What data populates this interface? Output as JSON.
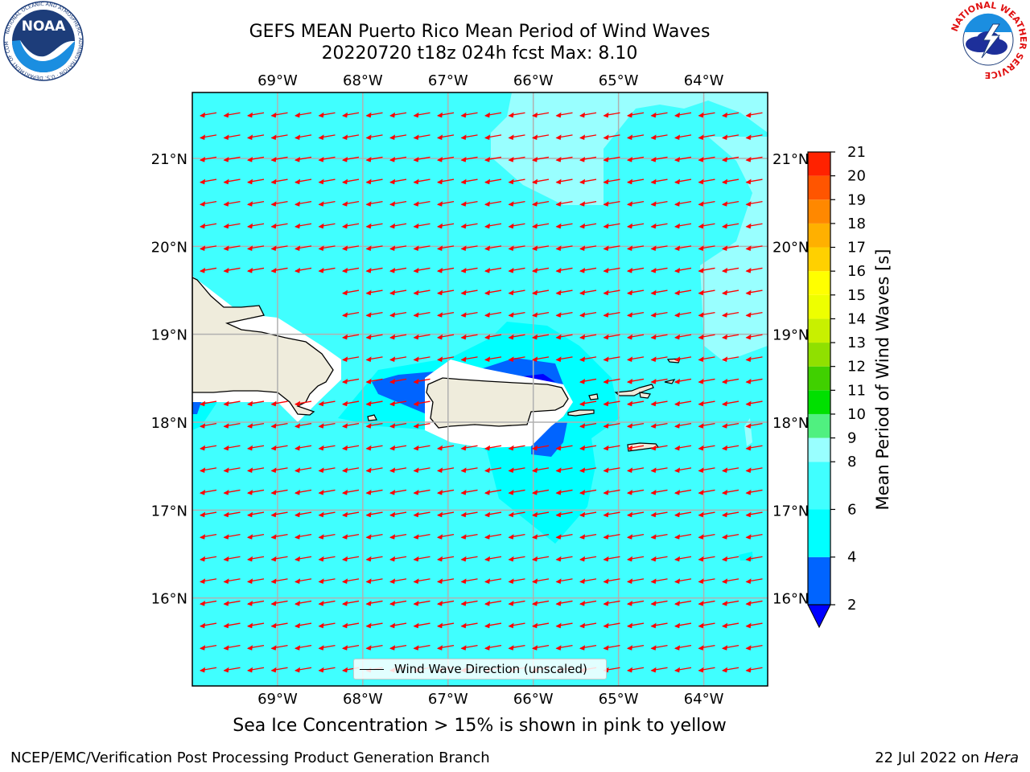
{
  "title": {
    "line1": "GEFS MEAN Puerto Rico Mean Period of Wind Waves",
    "line2": "20220720 t18z 024h fcst   Max: 8.10"
  },
  "map": {
    "lon_min": -70.0,
    "lon_max": -63.25,
    "lat_min": 15.0,
    "lat_max": 21.75,
    "lon_ticks": [
      {
        "value": -69,
        "label": "69°W"
      },
      {
        "value": -68,
        "label": "68°W"
      },
      {
        "value": -67,
        "label": "67°W"
      },
      {
        "value": -66,
        "label": "66°W"
      },
      {
        "value": -65,
        "label": "65°W"
      },
      {
        "value": -64,
        "label": "64°W"
      }
    ],
    "lat_ticks": [
      {
        "value": 21,
        "label": "21°N"
      },
      {
        "value": 20,
        "label": "20°N"
      },
      {
        "value": 19,
        "label": "19°N"
      },
      {
        "value": 18,
        "label": "18°N"
      },
      {
        "value": 17,
        "label": "17°N"
      },
      {
        "value": 16,
        "label": "16°N"
      }
    ],
    "grid": true,
    "land_color": "#efecdc",
    "ocean_fill": "#40ffff",
    "arrow_color": "#ff0000",
    "arrow_direction": "from east (pointing west-southwest)"
  },
  "legend": {
    "label": "Wind Wave Direction (unscaled)",
    "placement": "lower-center"
  },
  "colorbar": {
    "label": "Mean Period of Wind Waves [s]",
    "min": 2,
    "max": 21,
    "tick_labels": [
      "2",
      "4",
      "6",
      "8",
      "9",
      "10",
      "11",
      "12",
      "13",
      "14",
      "15",
      "16",
      "17",
      "18",
      "19",
      "20",
      "21"
    ],
    "boundaries": [
      2,
      4,
      6,
      8,
      9,
      10,
      11,
      12,
      13,
      14,
      15,
      16,
      17,
      18,
      19,
      20,
      21
    ],
    "colors": [
      "#0064ff",
      "#00ffff",
      "#40ffff",
      "#99ffff",
      "#50f080",
      "#00e000",
      "#40d000",
      "#90e000",
      "#c8f000",
      "#eeff00",
      "#ffff00",
      "#ffd000",
      "#ffb000",
      "#ff8800",
      "#ff5500",
      "#ff2200"
    ],
    "under_color": "#0000ff"
  },
  "footnote": "Sea Ice Concentration > 15% is shown in pink to yellow",
  "credit_left": "NCEP/EMC/Verification Post Processing Product Generation Branch",
  "credit_right_prefix": "22 Jul 2022 on ",
  "credit_right_system": "Hera",
  "logos": {
    "noaa": {
      "text": "NOAA",
      "icon": "noaa-logo-icon",
      "ring_text": "NATIONAL OCEANIC AND ATMOSPHERIC ADMINISTRATION · U.S. DEPARTMENT OF COMMERCE"
    },
    "nws": {
      "icon": "nws-logo-icon",
      "ring_text": "NATIONAL WEATHER SERVICE"
    }
  }
}
